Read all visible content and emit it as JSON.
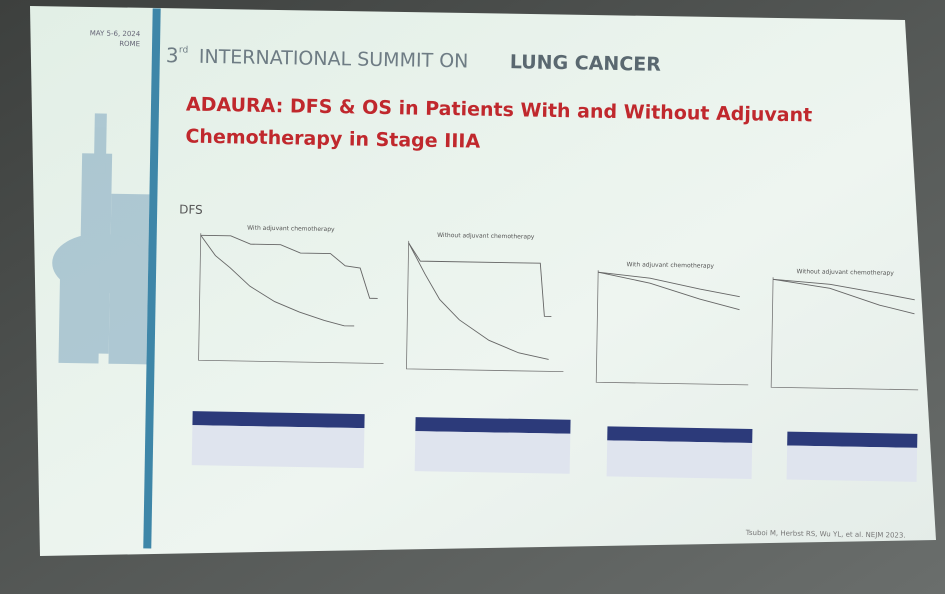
{
  "header": {
    "date": "MAY 5-6, 2024",
    "city": "ROME",
    "summit_ordinal": "3",
    "summit_ordinal_suffix": "rd",
    "summit_name": "INTERNATIONAL SUMMIT ON",
    "summit_topic": "LUNG CANCER"
  },
  "slide": {
    "title_lines": [
      "ADAURA: DFS & OS in Patients With and Without Adjuvant",
      "Chemotherapy in Stage IIIA"
    ],
    "section_label": "DFS",
    "panels": [
      {
        "title": "With adjuvant chemotherapy"
      },
      {
        "title": "Without adjuvant chemotherapy"
      },
      {
        "title": "With adjuvant chemotherapy"
      },
      {
        "title": "Without adjuvant chemotherapy"
      }
    ],
    "citation": "Tsuboi M, Herbst RS, Wu YL, et al. NEJM 2023."
  }
}
